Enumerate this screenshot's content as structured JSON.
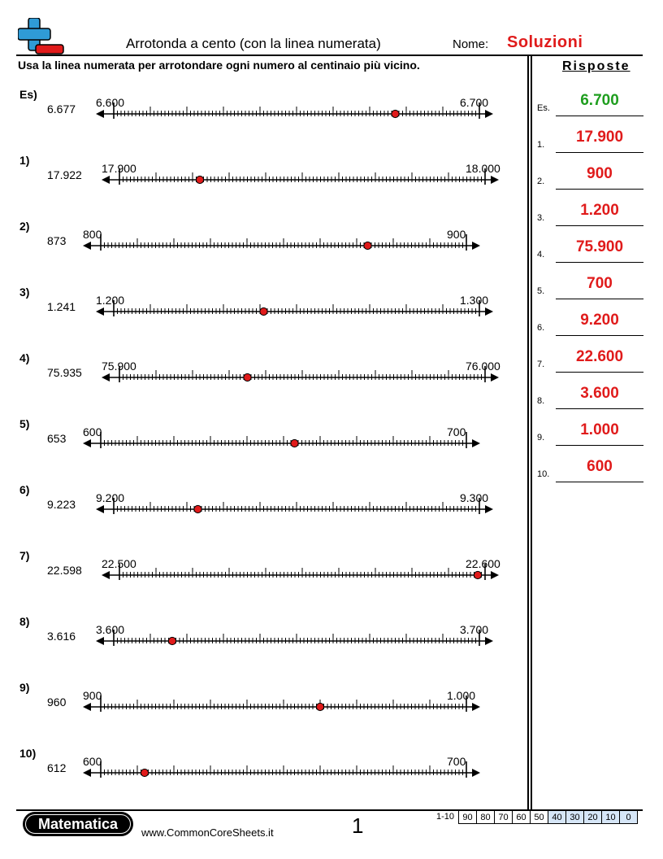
{
  "header": {
    "title": "Arrotonda a cento (con la linea numerata)",
    "name_label": "Nome:",
    "name_value": "Soluzioni"
  },
  "instructions": "Usa la linea numerata per arrotondare ogni numero al centinaio più vicino.",
  "problems": [
    {
      "label": "Es)",
      "number": "6.677",
      "left_label": "6.600",
      "right_label": "6.700",
      "fraction": 0.77
    },
    {
      "label": "1)",
      "number": "17.922",
      "left_label": "17.900",
      "right_label": "18.000",
      "fraction": 0.22
    },
    {
      "label": "2)",
      "number": "873",
      "left_label": "800",
      "right_label": "900",
      "fraction": 0.73
    },
    {
      "label": "3)",
      "number": "1.241",
      "left_label": "1.200",
      "right_label": "1.300",
      "fraction": 0.41
    },
    {
      "label": "4)",
      "number": "75.935",
      "left_label": "75.900",
      "right_label": "76.000",
      "fraction": 0.35
    },
    {
      "label": "5)",
      "number": "653",
      "left_label": "600",
      "right_label": "700",
      "fraction": 0.53
    },
    {
      "label": "6)",
      "number": "9.223",
      "left_label": "9.200",
      "right_label": "9.300",
      "fraction": 0.23
    },
    {
      "label": "7)",
      "number": "22.598",
      "left_label": "22.500",
      "right_label": "22.600",
      "fraction": 0.98
    },
    {
      "label": "8)",
      "number": "3.616",
      "left_label": "3.600",
      "right_label": "3.700",
      "fraction": 0.16
    },
    {
      "label": "9)",
      "number": "960",
      "left_label": "900",
      "right_label": "1.000",
      "fraction": 0.6
    },
    {
      "label": "10)",
      "number": "612",
      "left_label": "600",
      "right_label": "700",
      "fraction": 0.12
    }
  ],
  "answers_title": "Risposte",
  "answers": [
    {
      "label": "Es.",
      "value": "6.700"
    },
    {
      "label": "1.",
      "value": "17.900"
    },
    {
      "label": "2.",
      "value": "900"
    },
    {
      "label": "3.",
      "value": "1.200"
    },
    {
      "label": "4.",
      "value": "75.900"
    },
    {
      "label": "5.",
      "value": "700"
    },
    {
      "label": "6.",
      "value": "9.200"
    },
    {
      "label": "7.",
      "value": "22.600"
    },
    {
      "label": "8.",
      "value": "3.600"
    },
    {
      "label": "9.",
      "value": "1.000"
    },
    {
      "label": "10.",
      "value": "600"
    }
  ],
  "footer": {
    "brand": "Matematica",
    "website": "www.CommonCoreSheets.it",
    "page_number": "1",
    "score_range": "1-10",
    "scores": [
      "90",
      "80",
      "70",
      "60",
      "50",
      "40",
      "30",
      "20",
      "10",
      "0"
    ]
  },
  "colors": {
    "answer_red": "#e01b1b",
    "example_green": "#1f9e1f",
    "dot_red": "#e01b1b",
    "logo_blue": "#2f9bd6",
    "score_blue": "#d6e6f7"
  },
  "icons": {
    "logo": "plus-minus-icon"
  }
}
